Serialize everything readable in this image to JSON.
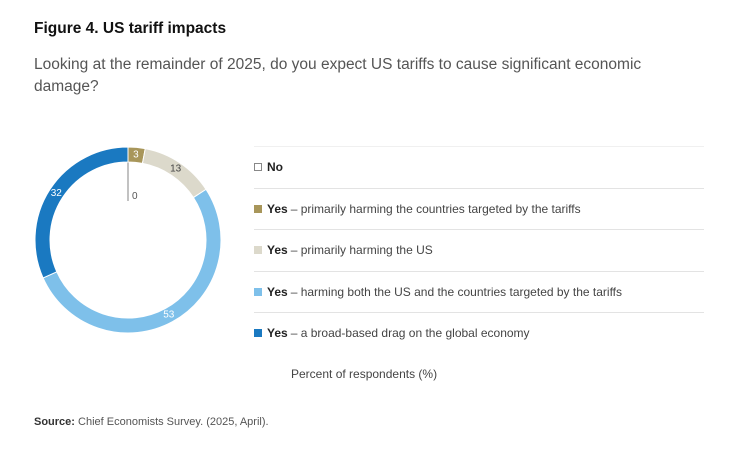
{
  "figure": {
    "title": "Figure 4. US tariff impacts",
    "subtitle": "Looking at the remainder of 2025, do you expect US tariffs to cause significant economic damage?",
    "unit_label": "Percent of respondents (%)",
    "source_label": "Source:",
    "source_text": "Chief Economists Survey. (2025, April)."
  },
  "chart_data": {
    "type": "pie",
    "style": "donut",
    "title": "US tariff impacts",
    "unit": "Percent of respondents (%)",
    "legend_position": "right",
    "series": [
      {
        "name": "No",
        "bold": "No",
        "rest": "",
        "value": 0,
        "color": "#ffffff",
        "label_color": "#555555"
      },
      {
        "name": "Yes – primarily harming the countries targeted by the tariffs",
        "bold": "Yes",
        "rest": "– primarily harming the countries targeted by the tariffs",
        "value": 3,
        "color": "#a8965a",
        "label_color": "#ffffff"
      },
      {
        "name": "Yes – primarily harming the US",
        "bold": "Yes",
        "rest": "– primarily harming the US",
        "value": 13,
        "color": "#dcd9cb",
        "label_color": "#444444"
      },
      {
        "name": "Yes – harming both the US and the countries targeted by the tariffs",
        "bold": "Yes",
        "rest": "– harming both the US and the countries targeted by the tariffs",
        "value": 53,
        "color": "#7ec0ea",
        "label_color": "#ffffff"
      },
      {
        "name": "Yes – a broad-based drag on the global economy",
        "bold": "Yes",
        "rest": "– a broad-based drag on the global economy",
        "value": 32,
        "color": "#1a79c1",
        "label_color": "#ffffff"
      }
    ]
  }
}
